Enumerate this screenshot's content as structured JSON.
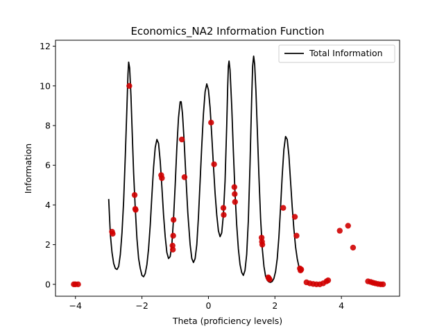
{
  "chart_data": {
    "type": "line",
    "title": "Economics_NA2 Information Function",
    "xlabel": "Theta (proficiency levels)",
    "ylabel": "Information",
    "xlim": [
      -4.6,
      5.75
    ],
    "ylim": [
      -0.6,
      12.3
    ],
    "xticks": [
      -4,
      -2,
      0,
      2,
      4
    ],
    "yticks": [
      0,
      2,
      4,
      6,
      8,
      10,
      12
    ],
    "grid": false,
    "legend": {
      "placement": "top-right",
      "entries": [
        "Total Information"
      ]
    },
    "series": [
      {
        "name": "Total Information",
        "color": "#000000",
        "points": [
          [
            -3.0,
            4.3
          ],
          [
            -2.95,
            2.5
          ],
          [
            -2.9,
            1.6
          ],
          [
            -2.85,
            1.05
          ],
          [
            -2.8,
            0.8
          ],
          [
            -2.75,
            0.75
          ],
          [
            -2.7,
            0.9
          ],
          [
            -2.65,
            1.5
          ],
          [
            -2.6,
            2.6
          ],
          [
            -2.55,
            4.2
          ],
          [
            -2.5,
            6.5
          ],
          [
            -2.45,
            9.0
          ],
          [
            -2.42,
            10.6
          ],
          [
            -2.4,
            11.2
          ],
          [
            -2.37,
            10.9
          ],
          [
            -2.33,
            9.5
          ],
          [
            -2.3,
            8.0
          ],
          [
            -2.25,
            5.6
          ],
          [
            -2.2,
            3.8
          ],
          [
            -2.15,
            2.3
          ],
          [
            -2.1,
            1.3
          ],
          [
            -2.05,
            0.8
          ],
          [
            -2.0,
            0.45
          ],
          [
            -1.95,
            0.38
          ],
          [
            -1.9,
            0.55
          ],
          [
            -1.85,
            1.0
          ],
          [
            -1.8,
            1.8
          ],
          [
            -1.75,
            3.0
          ],
          [
            -1.7,
            4.5
          ],
          [
            -1.65,
            5.9
          ],
          [
            -1.6,
            6.9
          ],
          [
            -1.55,
            7.3
          ],
          [
            -1.5,
            7.1
          ],
          [
            -1.45,
            6.2
          ],
          [
            -1.4,
            4.9
          ],
          [
            -1.35,
            3.5
          ],
          [
            -1.3,
            2.4
          ],
          [
            -1.25,
            1.6
          ],
          [
            -1.2,
            1.3
          ],
          [
            -1.15,
            1.4
          ],
          [
            -1.1,
            2.0
          ],
          [
            -1.05,
            3.3
          ],
          [
            -1.0,
            5.0
          ],
          [
            -0.95,
            6.9
          ],
          [
            -0.9,
            8.4
          ],
          [
            -0.85,
            9.2
          ],
          [
            -0.82,
            9.2
          ],
          [
            -0.78,
            8.6
          ],
          [
            -0.73,
            7.2
          ],
          [
            -0.68,
            5.5
          ],
          [
            -0.62,
            3.6
          ],
          [
            -0.55,
            2.0
          ],
          [
            -0.5,
            1.3
          ],
          [
            -0.45,
            1.1
          ],
          [
            -0.4,
            1.3
          ],
          [
            -0.35,
            2.0
          ],
          [
            -0.3,
            3.4
          ],
          [
            -0.25,
            5.2
          ],
          [
            -0.2,
            7.0
          ],
          [
            -0.15,
            8.6
          ],
          [
            -0.1,
            9.7
          ],
          [
            -0.05,
            10.1
          ],
          [
            0.0,
            9.8
          ],
          [
            0.05,
            8.9
          ],
          [
            0.1,
            7.5
          ],
          [
            0.15,
            6.0
          ],
          [
            0.2,
            4.6
          ],
          [
            0.25,
            3.5
          ],
          [
            0.3,
            2.7
          ],
          [
            0.35,
            2.4
          ],
          [
            0.4,
            2.6
          ],
          [
            0.45,
            3.5
          ],
          [
            0.5,
            5.2
          ],
          [
            0.55,
            8.0
          ],
          [
            0.58,
            10.0
          ],
          [
            0.6,
            11.0
          ],
          [
            0.62,
            11.25
          ],
          [
            0.65,
            10.8
          ],
          [
            0.7,
            9.0
          ],
          [
            0.75,
            6.7
          ],
          [
            0.8,
            4.6
          ],
          [
            0.85,
            3.0
          ],
          [
            0.9,
            1.8
          ],
          [
            0.95,
            1.0
          ],
          [
            1.0,
            0.6
          ],
          [
            1.05,
            0.45
          ],
          [
            1.1,
            0.7
          ],
          [
            1.15,
            1.5
          ],
          [
            1.2,
            3.2
          ],
          [
            1.25,
            6.0
          ],
          [
            1.3,
            9.3
          ],
          [
            1.33,
            11.0
          ],
          [
            1.36,
            11.5
          ],
          [
            1.39,
            11.1
          ],
          [
            1.43,
            9.7
          ],
          [
            1.47,
            7.8
          ],
          [
            1.52,
            5.4
          ],
          [
            1.57,
            3.3
          ],
          [
            1.62,
            1.8
          ],
          [
            1.67,
            0.9
          ],
          [
            1.72,
            0.4
          ],
          [
            1.77,
            0.2
          ],
          [
            1.82,
            0.12
          ],
          [
            1.87,
            0.1
          ],
          [
            1.92,
            0.15
          ],
          [
            1.97,
            0.3
          ],
          [
            2.02,
            0.65
          ],
          [
            2.07,
            1.3
          ],
          [
            2.12,
            2.4
          ],
          [
            2.17,
            3.9
          ],
          [
            2.22,
            5.5
          ],
          [
            2.27,
            6.8
          ],
          [
            2.32,
            7.45
          ],
          [
            2.37,
            7.3
          ],
          [
            2.42,
            6.5
          ],
          [
            2.47,
            5.2
          ],
          [
            2.52,
            3.9
          ],
          [
            2.57,
            2.8
          ],
          [
            2.62,
            1.9
          ],
          [
            2.67,
            1.3
          ],
          [
            2.72,
            0.9
          ],
          [
            2.77,
            0.6
          ]
        ]
      },
      {
        "name": "",
        "type": "scatter",
        "color": "#d00000",
        "points": [
          [
            -4.05,
            0.0
          ],
          [
            -4.0,
            0.0
          ],
          [
            -3.92,
            0.0
          ],
          [
            -2.9,
            2.65
          ],
          [
            -2.88,
            2.55
          ],
          [
            -2.38,
            10.0
          ],
          [
            -2.22,
            4.5
          ],
          [
            -2.2,
            3.8
          ],
          [
            -2.19,
            3.75
          ],
          [
            -1.42,
            5.5
          ],
          [
            -1.4,
            5.35
          ],
          [
            -1.05,
            3.25
          ],
          [
            -1.06,
            2.45
          ],
          [
            -1.08,
            1.95
          ],
          [
            -1.07,
            1.75
          ],
          [
            -0.8,
            7.3
          ],
          [
            -0.72,
            5.4
          ],
          [
            0.08,
            8.15
          ],
          [
            0.17,
            6.05
          ],
          [
            0.45,
            3.85
          ],
          [
            0.46,
            3.5
          ],
          [
            0.78,
            4.9
          ],
          [
            0.79,
            4.55
          ],
          [
            0.8,
            4.15
          ],
          [
            1.6,
            2.35
          ],
          [
            1.61,
            2.15
          ],
          [
            1.62,
            2.0
          ],
          [
            1.8,
            0.35
          ],
          [
            1.82,
            0.3
          ],
          [
            1.84,
            0.25
          ],
          [
            2.25,
            3.85
          ],
          [
            2.6,
            3.4
          ],
          [
            2.65,
            2.45
          ],
          [
            2.75,
            0.8
          ],
          [
            2.77,
            0.7
          ],
          [
            2.79,
            0.75
          ],
          [
            2.95,
            0.1
          ],
          [
            3.05,
            0.05
          ],
          [
            3.15,
            0.02
          ],
          [
            3.25,
            0.0
          ],
          [
            3.35,
            0.0
          ],
          [
            3.45,
            0.05
          ],
          [
            3.55,
            0.15
          ],
          [
            3.6,
            0.2
          ],
          [
            3.95,
            2.7
          ],
          [
            4.2,
            2.95
          ],
          [
            4.35,
            1.85
          ],
          [
            4.8,
            0.15
          ],
          [
            4.88,
            0.12
          ],
          [
            4.95,
            0.08
          ],
          [
            5.02,
            0.05
          ],
          [
            5.1,
            0.02
          ],
          [
            5.18,
            0.0
          ],
          [
            5.25,
            0.0
          ]
        ]
      }
    ]
  }
}
